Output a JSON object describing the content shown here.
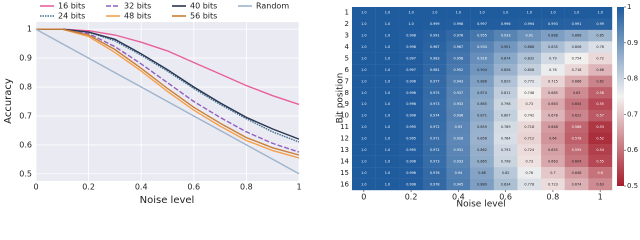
{
  "chart_data": [
    {
      "type": "line",
      "xlabel": "Noise level",
      "ylabel": "Accuracy",
      "x": [
        0,
        0.1,
        0.2,
        0.3,
        0.4,
        0.5,
        0.6,
        0.7,
        0.8,
        0.9,
        1
      ],
      "series": [
        {
          "name": "16 bits",
          "color": "#e8609a",
          "dash": "",
          "values": [
            1,
            1,
            0.995,
            0.98,
            0.955,
            0.925,
            0.885,
            0.845,
            0.805,
            0.77,
            0.74
          ]
        },
        {
          "name": "24 bits",
          "color": "#3d6f8e",
          "dash": "1.5,1",
          "values": [
            1,
            1,
            0.99,
            0.96,
            0.91,
            0.855,
            0.795,
            0.74,
            0.69,
            0.645,
            0.61
          ]
        },
        {
          "name": "32 bits",
          "color": "#8e5fc0",
          "dash": "5,2",
          "values": [
            1,
            1,
            0.985,
            0.94,
            0.88,
            0.815,
            0.75,
            0.695,
            0.645,
            0.605,
            0.575
          ]
        },
        {
          "name": "48 bits",
          "color": "#f5a04b",
          "dash": "",
          "values": [
            1,
            1,
            0.975,
            0.92,
            0.855,
            0.785,
            0.72,
            0.665,
            0.615,
            0.58,
            0.555
          ]
        },
        {
          "name": "40 bits",
          "color": "#2a3550",
          "dash": "",
          "values": [
            1,
            1,
            0.99,
            0.965,
            0.915,
            0.86,
            0.8,
            0.745,
            0.695,
            0.655,
            0.62
          ]
        },
        {
          "name": "56 bits",
          "color": "#c97f35",
          "dash": "",
          "values": [
            1,
            1,
            0.98,
            0.93,
            0.865,
            0.795,
            0.73,
            0.675,
            0.625,
            0.59,
            0.565
          ]
        },
        {
          "name": "Random",
          "color": "#9fb4cc",
          "dash": "",
          "values": [
            1,
            0.95,
            0.9,
            0.85,
            0.8,
            0.75,
            0.7,
            0.65,
            0.6,
            0.55,
            0.5
          ]
        }
      ],
      "xlim": [
        0,
        1
      ],
      "xticks": [
        0,
        0.2,
        0.4,
        0.6,
        0.8,
        1
      ],
      "ylim": [
        0.475,
        1.025
      ],
      "yticks": [
        0.5,
        0.6,
        0.7,
        0.8,
        0.9,
        1
      ],
      "grid": true,
      "legend": "upper center"
    },
    {
      "type": "heatmap",
      "xlabel": "Noise level",
      "ylabel": "Bit position",
      "x": [
        0,
        0.1,
        0.2,
        0.3,
        0.4,
        0.5,
        0.6,
        0.7,
        0.8,
        0.9,
        1
      ],
      "rows": [
        1,
        2,
        3,
        4,
        5,
        6,
        7,
        8,
        9,
        10,
        11,
        12,
        13,
        14,
        15,
        16
      ],
      "xlim": [
        -0.05,
        1.05
      ],
      "xticks": [
        0,
        0.2,
        0.4,
        0.6,
        0.8,
        1
      ],
      "clim": [
        0.5,
        1
      ],
      "cticks": [
        0.5,
        0.6,
        0.7,
        0.8,
        0.9,
        1
      ],
      "colormap": [
        "#a51d2d",
        "#f4f2f0",
        "#1f5c9e"
      ],
      "values": [
        [
          1,
          1,
          1,
          1,
          1,
          1,
          1,
          1,
          1,
          1,
          1
        ],
        [
          1,
          1,
          1,
          0.999,
          0.998,
          0.997,
          0.996,
          0.994,
          0.993,
          0.991,
          0.99
        ],
        [
          1,
          1,
          0.998,
          0.991,
          0.978,
          0.955,
          0.933,
          0.91,
          0.888,
          0.868,
          0.85
        ],
        [
          1,
          1,
          0.998,
          0.987,
          0.967,
          0.934,
          0.901,
          0.868,
          0.835,
          0.806,
          0.78
        ],
        [
          1,
          1,
          0.997,
          0.983,
          0.958,
          0.916,
          0.874,
          0.832,
          0.79,
          0.754,
          0.72
        ],
        [
          1,
          1,
          0.997,
          0.981,
          0.952,
          0.904,
          0.856,
          0.808,
          0.76,
          0.718,
          0.68
        ],
        [
          1,
          1,
          0.996,
          0.977,
          0.943,
          0.886,
          0.829,
          0.772,
          0.715,
          0.666,
          0.62
        ],
        [
          1,
          1,
          0.996,
          0.975,
          0.937,
          0.874,
          0.811,
          0.748,
          0.685,
          0.63,
          0.58
        ],
        [
          1,
          1,
          0.996,
          0.973,
          0.933,
          0.865,
          0.798,
          0.73,
          0.663,
          0.604,
          0.55
        ],
        [
          1,
          1,
          0.996,
          0.974,
          0.936,
          0.871,
          0.807,
          0.742,
          0.678,
          0.622,
          0.57
        ],
        [
          1,
          1,
          0.995,
          0.972,
          0.93,
          0.859,
          0.789,
          0.718,
          0.648,
          0.586,
          0.53
        ],
        [
          1,
          1,
          0.995,
          0.971,
          0.928,
          0.856,
          0.784,
          0.712,
          0.64,
          0.578,
          0.52
        ],
        [
          1,
          1,
          0.995,
          0.972,
          0.931,
          0.862,
          0.793,
          0.724,
          0.655,
          0.595,
          0.54
        ],
        [
          1,
          1,
          0.996,
          0.973,
          0.933,
          0.865,
          0.798,
          0.73,
          0.663,
          0.604,
          0.55
        ],
        [
          1,
          1,
          0.996,
          0.976,
          0.94,
          0.88,
          0.82,
          0.76,
          0.7,
          0.648,
          0.6
        ],
        [
          1,
          1,
          0.996,
          0.978,
          0.945,
          0.889,
          0.834,
          0.778,
          0.723,
          0.674,
          0.63
        ]
      ],
      "value_labels": [
        [
          "1.0",
          "1.0",
          "1.0",
          "1.0",
          "1.0",
          "1.0",
          "1.0",
          "1.0",
          "1.0",
          "1.0",
          "1.0"
        ],
        [
          "1.0",
          "1.0",
          "1.0",
          "0.999",
          "0.998",
          "0.997",
          "0.996",
          "0.994",
          "0.993",
          "0.991",
          "0.99"
        ],
        [
          "1.0",
          "1.0",
          "0.998",
          "0.991",
          "0.978",
          "0.955",
          "0.933",
          "0.91",
          "0.888",
          "0.868",
          "0.85"
        ],
        [
          "1.0",
          "1.0",
          "0.998",
          "0.987",
          "0.967",
          "0.934",
          "0.901",
          "0.868",
          "0.835",
          "0.806",
          "0.78"
        ],
        [
          "1.0",
          "1.0",
          "0.997",
          "0.983",
          "0.958",
          "0.916",
          "0.874",
          "0.832",
          "0.79",
          "0.754",
          "0.72"
        ],
        [
          "1.0",
          "1.0",
          "0.997",
          "0.981",
          "0.952",
          "0.904",
          "0.856",
          "0.808",
          "0.76",
          "0.718",
          "0.68"
        ],
        [
          "1.0",
          "1.0",
          "0.996",
          "0.977",
          "0.943",
          "0.886",
          "0.829",
          "0.772",
          "0.715",
          "0.666",
          "0.62"
        ],
        [
          "1.0",
          "1.0",
          "0.996",
          "0.975",
          "0.937",
          "0.874",
          "0.811",
          "0.748",
          "0.685",
          "0.63",
          "0.58"
        ],
        [
          "1.0",
          "1.0",
          "0.996",
          "0.973",
          "0.933",
          "0.865",
          "0.798",
          "0.73",
          "0.663",
          "0.604",
          "0.55"
        ],
        [
          "1.0",
          "1.0",
          "0.996",
          "0.974",
          "0.936",
          "0.871",
          "0.807",
          "0.742",
          "0.678",
          "0.622",
          "0.57"
        ],
        [
          "1.0",
          "1.0",
          "0.995",
          "0.972",
          "0.93",
          "0.859",
          "0.789",
          "0.718",
          "0.648",
          "0.586",
          "0.53"
        ],
        [
          "1.0",
          "1.0",
          "0.995",
          "0.971",
          "0.928",
          "0.856",
          "0.784",
          "0.712",
          "0.64",
          "0.578",
          "0.52"
        ],
        [
          "1.0",
          "1.0",
          "0.995",
          "0.972",
          "0.931",
          "0.862",
          "0.793",
          "0.724",
          "0.655",
          "0.595",
          "0.54"
        ],
        [
          "1.0",
          "1.0",
          "0.996",
          "0.973",
          "0.933",
          "0.865",
          "0.798",
          "0.73",
          "0.663",
          "0.604",
          "0.55"
        ],
        [
          "1.0",
          "1.0",
          "0.996",
          "0.976",
          "0.94",
          "0.88",
          "0.82",
          "0.76",
          "0.7",
          "0.648",
          "0.6"
        ],
        [
          "1.0",
          "1.0",
          "0.996",
          "0.978",
          "0.945",
          "0.889",
          "0.834",
          "0.778",
          "0.723",
          "0.674",
          "0.63"
        ]
      ]
    }
  ]
}
